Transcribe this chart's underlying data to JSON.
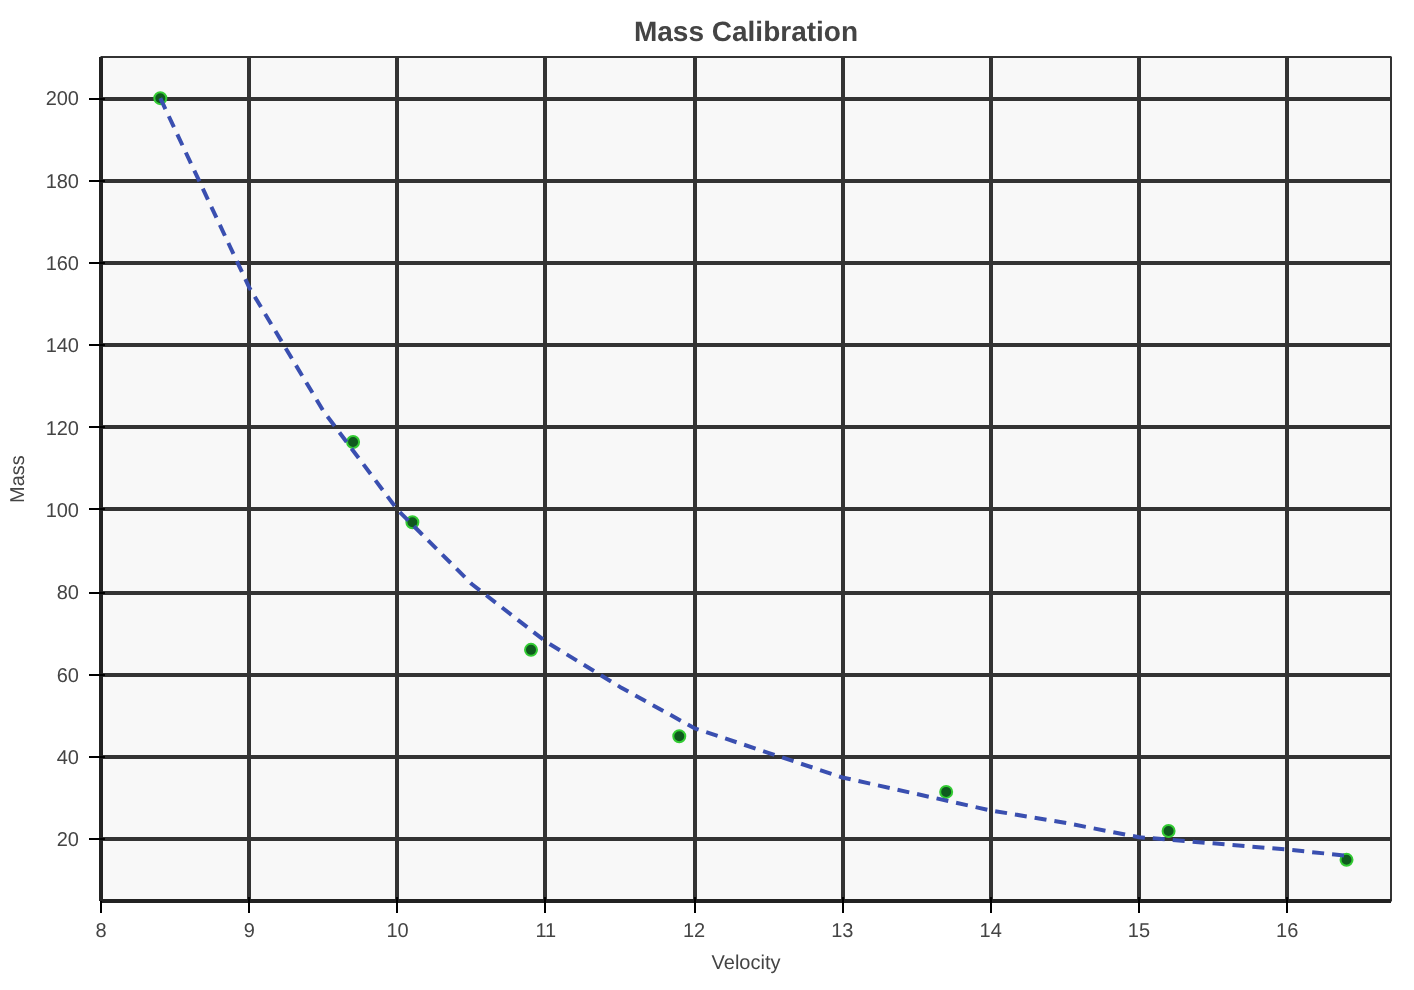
{
  "chart_data": {
    "type": "scatter",
    "title": "Mass Calibration",
    "xlabel": "Velocity",
    "ylabel": "Mass",
    "xlim": [
      8,
      16.7
    ],
    "ylim": [
      5,
      210
    ],
    "xticks": [
      8,
      9,
      10,
      11,
      12,
      13,
      14,
      15,
      16
    ],
    "yticks": [
      20,
      40,
      60,
      80,
      100,
      120,
      140,
      160,
      180,
      200
    ],
    "grid": true,
    "series": [
      {
        "color": "#0f5a1e",
        "marker": "circle",
        "x": [
          8.4,
          9.7,
          10.1,
          10.9,
          11.9,
          13.7,
          15.2,
          16.4
        ],
        "values": [
          200,
          116.5,
          97,
          66,
          45,
          31.5,
          22,
          15
        ]
      },
      {
        "type": "line",
        "color": "#3a4fb0",
        "line_style": "dashed",
        "x": [
          8.4,
          9,
          9.5,
          10,
          10.5,
          11,
          11.5,
          12,
          12.5,
          13,
          13.5,
          14,
          14.5,
          15,
          15.5,
          16,
          16.4
        ],
        "values": [
          200,
          154,
          124,
          100,
          82,
          68,
          57,
          47,
          41,
          35,
          31,
          27,
          24,
          20.5,
          19,
          17.5,
          16
        ]
      }
    ]
  }
}
